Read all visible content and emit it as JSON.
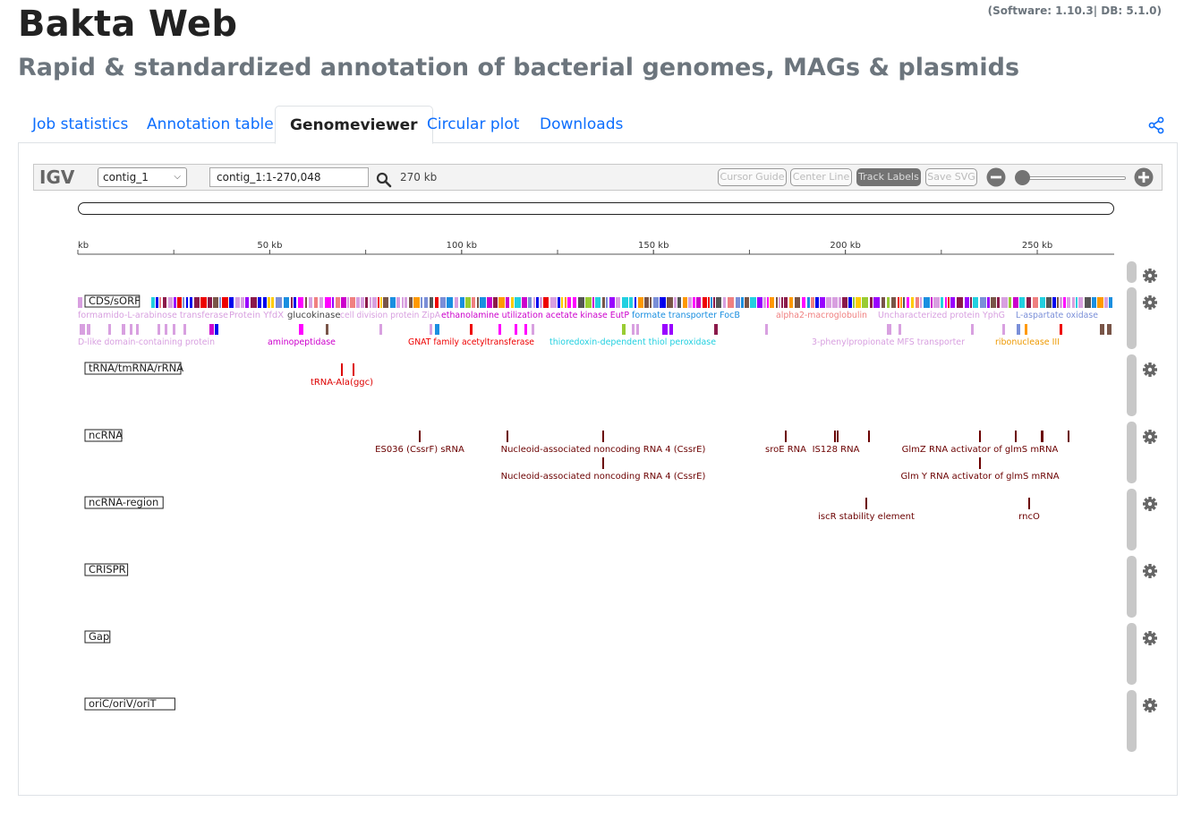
{
  "header": {
    "title": "Bakta Web",
    "subtitle": "Rapid & standardized annotation of bacterial genomes, MAGs & plasmids",
    "version": "(Software: 1.10.3| DB: 5.1.0)"
  },
  "tabs": [
    {
      "label": "Job statistics",
      "active": false
    },
    {
      "label": "Annotation table",
      "active": false
    },
    {
      "label": "Genomeviewer",
      "active": true
    },
    {
      "label": "Circular plot",
      "active": false
    },
    {
      "label": "Downloads",
      "active": false
    }
  ],
  "share_icon": "share-icon",
  "igv": {
    "logo": "IGV",
    "chromosome": "contig_1",
    "locus": "contig_1:1-270,048",
    "window_size": "270 kb",
    "buttons": [
      {
        "label": "Cursor Guide",
        "on": false
      },
      {
        "label": "Center Line",
        "on": false
      },
      {
        "label": "Track Labels",
        "on": true
      },
      {
        "label": "Save SVG",
        "on": false
      }
    ],
    "ruler": {
      "max_bp": 270048,
      "ticks": [
        {
          "bp": 0,
          "label": "kb"
        },
        {
          "bp": 50000,
          "label": "50 kb"
        },
        {
          "bp": 100000,
          "label": "100 kb"
        },
        {
          "bp": 150000,
          "label": "150 kb"
        },
        {
          "bp": 200000,
          "label": "200 kb"
        },
        {
          "bp": 250000,
          "label": "250 kb"
        }
      ]
    },
    "tracks": [
      {
        "name": "CDS/sORF",
        "feature_labels": [
          {
            "text": "formamido-L-arabinose transferase",
            "color": "#d8a0e0"
          },
          {
            "text": "Protein YfdX",
            "color": "#d8a0e0"
          },
          {
            "text": "glucokinase",
            "color": "#444444"
          },
          {
            "text": "cell division protein ZipA",
            "color": "#d8a0e0"
          },
          {
            "text": "ethanolamine utilization acetate kinase EutP",
            "color": "#cc00cc"
          },
          {
            "text": "formate transporter FocB",
            "color": "#1a8fe0"
          },
          {
            "text": "alpha2-macroglobulin",
            "color": "#f08080"
          },
          {
            "text": "Uncharacterized protein YphG",
            "color": "#d8a0e0"
          },
          {
            "text": "L-aspartate oxidase",
            "color": "#7a8fd8"
          },
          {
            "text": "D-like domain-containing protein",
            "color": "#d8a0e0"
          },
          {
            "text": "aminopeptidase",
            "color": "#cc00cc"
          },
          {
            "text": "GNAT family acetyltransferase",
            "color": "#ee0000"
          },
          {
            "text": "thioredoxin-dependent thiol peroxidase",
            "color": "#22d0e0"
          },
          {
            "text": "3-phenylpropionate MFS transporter",
            "color": "#d8a0e0"
          },
          {
            "text": "ribonuclease III",
            "color": "#ee9900"
          }
        ]
      },
      {
        "name": "tRNA/tmRNA/rRNA",
        "feature_labels": [
          {
            "text": "tRNA-Ala(ggc)",
            "color": "#dd0000"
          }
        ]
      },
      {
        "name": "ncRNA",
        "feature_labels": [
          {
            "text": "ES036 (CssrF) sRNA",
            "color": "#6b0000"
          },
          {
            "text": "Nucleoid-associated noncoding RNA 4 (CssrE)",
            "color": "#6b0000"
          },
          {
            "text": "sroE RNA",
            "color": "#6b0000"
          },
          {
            "text": "IS128 RNA",
            "color": "#6b0000"
          },
          {
            "text": "GlmZ RNA activator of glmS mRNA",
            "color": "#6b0000"
          },
          {
            "text": "Nucleoid-associated noncoding RNA 4 (CssrE)",
            "color": "#6b0000"
          },
          {
            "text": "Glm Y RNA activator of glmS mRNA",
            "color": "#6b0000"
          }
        ]
      },
      {
        "name": "ncRNA-region",
        "feature_labels": [
          {
            "text": "iscR stability element",
            "color": "#6b0000"
          },
          {
            "text": "rncO",
            "color": "#6b0000"
          }
        ]
      },
      {
        "name": "CRISPR",
        "feature_labels": []
      },
      {
        "name": "Gap",
        "feature_labels": []
      },
      {
        "name": "oriC/oriV/oriT",
        "feature_labels": []
      }
    ],
    "gear_icon": "gear-icon"
  },
  "colors": {
    "link": "#0d6efd",
    "subtitle_gray": "#6c757d",
    "ncrna_dark_red": "#6b0000",
    "trna_red": "#dd0000"
  }
}
